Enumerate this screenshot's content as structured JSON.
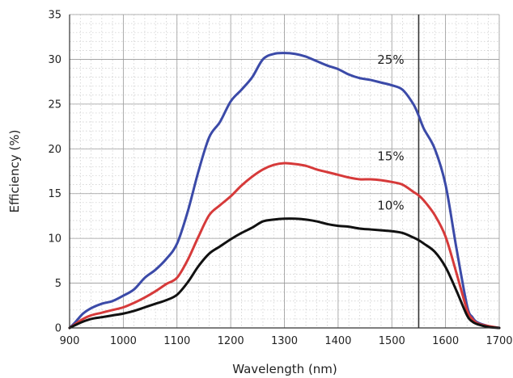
{
  "chart_data": {
    "type": "line",
    "title": "",
    "xlabel": "Wavelength (nm)",
    "ylabel": "Efficiency (%)",
    "xlim": [
      900,
      1700
    ],
    "ylim": [
      0,
      35
    ],
    "xticks": [
      900,
      1000,
      1100,
      1200,
      1300,
      1400,
      1500,
      1600,
      1700
    ],
    "yticks": [
      0,
      5,
      10,
      15,
      20,
      25,
      30,
      35
    ],
    "grid": true,
    "minor_grid": true,
    "legend": "inline labels",
    "reference_line": {
      "x": 1550
    },
    "series": [
      {
        "name": "25%",
        "color": "#3b4aa8",
        "x": [
          900,
          910,
          925,
          940,
          960,
          980,
          1000,
          1020,
          1040,
          1060,
          1080,
          1100,
          1120,
          1140,
          1160,
          1180,
          1200,
          1220,
          1240,
          1260,
          1280,
          1300,
          1320,
          1340,
          1360,
          1380,
          1400,
          1420,
          1440,
          1460,
          1480,
          1500,
          1520,
          1540,
          1550,
          1560,
          1580,
          1600,
          1620,
          1640,
          1650,
          1660,
          1680,
          1700
        ],
        "y": [
          0,
          0.6,
          1.6,
          2.2,
          2.7,
          3.0,
          3.6,
          4.3,
          5.6,
          6.5,
          7.7,
          9.4,
          13.0,
          17.5,
          21.3,
          23.0,
          25.3,
          26.6,
          28.0,
          30.0,
          30.6,
          30.7,
          30.6,
          30.3,
          29.8,
          29.3,
          28.9,
          28.3,
          27.9,
          27.7,
          27.4,
          27.1,
          26.6,
          25.0,
          23.7,
          22.2,
          20.0,
          16.0,
          9.0,
          2.5,
          1.2,
          0.6,
          0.2,
          0
        ]
      },
      {
        "name": "15%",
        "color": "#d63a3a",
        "x": [
          900,
          910,
          925,
          940,
          960,
          980,
          1000,
          1020,
          1040,
          1060,
          1080,
          1100,
          1120,
          1140,
          1160,
          1180,
          1200,
          1220,
          1240,
          1260,
          1280,
          1300,
          1320,
          1340,
          1360,
          1380,
          1400,
          1420,
          1440,
          1460,
          1480,
          1500,
          1520,
          1540,
          1550,
          1560,
          1580,
          1600,
          1620,
          1640,
          1650,
          1660,
          1680,
          1700
        ],
        "y": [
          0,
          0.4,
          1.0,
          1.4,
          1.7,
          2.0,
          2.3,
          2.8,
          3.4,
          4.1,
          4.9,
          5.6,
          7.6,
          10.2,
          12.6,
          13.7,
          14.7,
          15.9,
          16.9,
          17.7,
          18.2,
          18.4,
          18.3,
          18.1,
          17.7,
          17.4,
          17.1,
          16.8,
          16.6,
          16.6,
          16.5,
          16.3,
          16.0,
          15.2,
          14.8,
          14.2,
          12.6,
          10.2,
          6.2,
          2.0,
          1.0,
          0.5,
          0.2,
          0
        ]
      },
      {
        "name": "10%",
        "color": "#111111",
        "x": [
          900,
          910,
          925,
          940,
          960,
          980,
          1000,
          1020,
          1040,
          1060,
          1080,
          1100,
          1120,
          1140,
          1160,
          1180,
          1200,
          1220,
          1240,
          1260,
          1280,
          1300,
          1320,
          1340,
          1360,
          1380,
          1400,
          1420,
          1440,
          1460,
          1480,
          1500,
          1520,
          1540,
          1550,
          1560,
          1580,
          1600,
          1620,
          1640,
          1650,
          1660,
          1680,
          1700
        ],
        "y": [
          0,
          0.3,
          0.7,
          1.0,
          1.2,
          1.4,
          1.6,
          1.9,
          2.3,
          2.7,
          3.1,
          3.7,
          5.1,
          6.9,
          8.3,
          9.1,
          9.9,
          10.6,
          11.2,
          11.9,
          12.1,
          12.2,
          12.2,
          12.1,
          11.9,
          11.6,
          11.4,
          11.3,
          11.1,
          11.0,
          10.9,
          10.8,
          10.6,
          10.1,
          9.8,
          9.4,
          8.5,
          6.8,
          4.2,
          1.4,
          0.7,
          0.4,
          0.1,
          0
        ]
      }
    ]
  }
}
